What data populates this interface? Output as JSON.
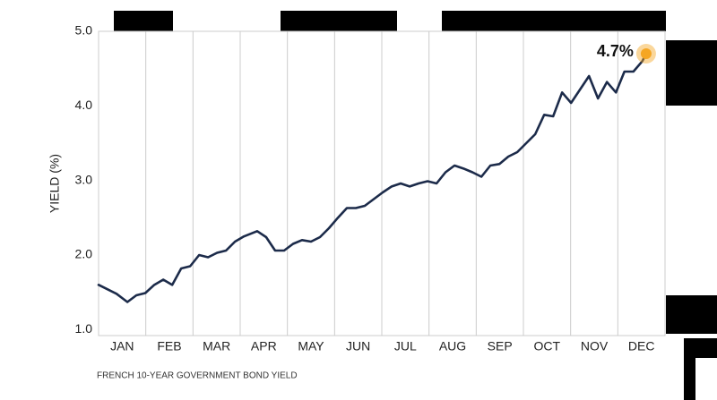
{
  "chart_data": {
    "type": "line",
    "caption": "FRENCH 10-YEAR GOVERNMENT BOND YIELD",
    "y_label": "YIELD (%)",
    "x": [
      0,
      0.19,
      0.38,
      0.61,
      0.8,
      0.99,
      1.18,
      1.37,
      1.56,
      1.75,
      1.94,
      2.13,
      2.32,
      2.51,
      2.7,
      2.89,
      3.08,
      3.36,
      3.55,
      3.74,
      3.93,
      4.12,
      4.31,
      4.5,
      4.69,
      4.88,
      5.07,
      5.26,
      5.45,
      5.64,
      5.83,
      6.02,
      6.21,
      6.4,
      6.59,
      6.78,
      6.97,
      7.16,
      7.35,
      7.54,
      7.73,
      7.92,
      8.11,
      8.3,
      8.49,
      8.68,
      8.87,
      9.06,
      9.25,
      9.44,
      9.63,
      9.82,
      10.01,
      10.2,
      10.39,
      10.58,
      10.77,
      10.96,
      11.14,
      11.33,
      11.52,
      11.6
    ],
    "series": [
      {
        "color": "#1c2b4a",
        "values": [
          1.6,
          1.54,
          1.48,
          1.37,
          1.46,
          1.49,
          1.6,
          1.67,
          1.6,
          1.82,
          1.85,
          2.0,
          1.97,
          2.03,
          2.06,
          2.18,
          2.25,
          2.32,
          2.24,
          2.06,
          2.06,
          2.15,
          2.2,
          2.18,
          2.24,
          2.36,
          2.5,
          2.63,
          2.63,
          2.66,
          2.75,
          2.84,
          2.92,
          2.96,
          2.92,
          2.96,
          2.99,
          2.96,
          3.11,
          3.2,
          3.16,
          3.11,
          3.05,
          3.2,
          3.22,
          3.32,
          3.38,
          3.5,
          3.62,
          3.88,
          3.86,
          4.18,
          4.04,
          4.22,
          4.4,
          4.1,
          4.32,
          4.18,
          4.46,
          4.46,
          4.6,
          4.7
        ],
        "value_labels": [
          null,
          null,
          null,
          null,
          null,
          null,
          null,
          null,
          null,
          null,
          null,
          null,
          null,
          null,
          null,
          null,
          null,
          null,
          null,
          null,
          null,
          null,
          null,
          null,
          null,
          null,
          null,
          null,
          null,
          null,
          null,
          null,
          null,
          null,
          null,
          null,
          null,
          null,
          null,
          null,
          null,
          null,
          null,
          null,
          null,
          null,
          null,
          null,
          null,
          null,
          null,
          null,
          null,
          null,
          null,
          null,
          null,
          null,
          null,
          null,
          null,
          "4.7%"
        ]
      }
    ],
    "highlight_color": "#f5a623",
    "xlim": [
      0,
      12
    ],
    "xticks": [
      {
        "value": 0.5,
        "label": "JAN"
      },
      {
        "value": 1.5,
        "label": "FEB"
      },
      {
        "value": 2.5,
        "label": "MAR"
      },
      {
        "value": 3.5,
        "label": "APR"
      },
      {
        "value": 4.5,
        "label": "MAY"
      },
      {
        "value": 5.5,
        "label": "JUN"
      },
      {
        "value": 6.5,
        "label": "JUL"
      },
      {
        "value": 7.5,
        "label": "AUG"
      },
      {
        "value": 8.5,
        "label": "SEP"
      },
      {
        "value": 9.5,
        "label": "OCT"
      },
      {
        "value": 10.5,
        "label": "NOV"
      },
      {
        "value": 11.5,
        "label": "DEC"
      }
    ],
    "ylim": [
      0.92,
      5
    ],
    "yticks": [
      {
        "value": 1,
        "label": "1.0"
      },
      {
        "value": 2,
        "label": "2.0"
      },
      {
        "value": 3,
        "label": "3.0"
      },
      {
        "value": 4,
        "label": "4.0"
      },
      {
        "value": 5,
        "label": "5.0"
      }
    ],
    "grid": "x"
  }
}
